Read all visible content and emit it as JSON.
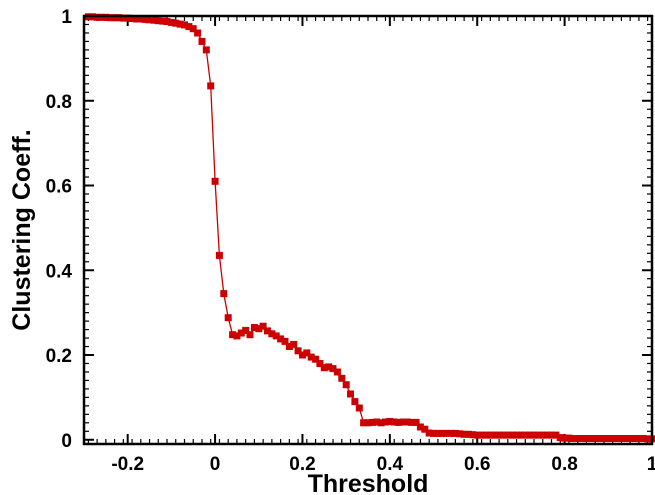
{
  "chart_data": {
    "type": "line",
    "title": "",
    "xlabel": "Threshold",
    "ylabel": "Clustering Coeff.",
    "xlim": [
      -0.3,
      1.0
    ],
    "ylim": [
      -0.01,
      1.0
    ],
    "xticks": [
      -0.2,
      0,
      0.2,
      0.4,
      0.6,
      0.8,
      1
    ],
    "xtick_labels": [
      "-0.2",
      "0",
      "0.2",
      "0.4",
      "0.6",
      "0.8",
      "1"
    ],
    "yticks": [
      0,
      0.2,
      0.4,
      0.6,
      0.8,
      1
    ],
    "ytick_labels": [
      "0",
      "0.2",
      "0.4",
      "0.6",
      "0.8",
      "1"
    ],
    "grid": false,
    "legend": "none",
    "marker": "square",
    "series": [
      {
        "color": "#cc0000",
        "x": [
          -0.29,
          -0.28,
          -0.27,
          -0.26,
          -0.25,
          -0.24,
          -0.23,
          -0.22,
          -0.21,
          -0.2,
          -0.19,
          -0.18,
          -0.17,
          -0.16,
          -0.15,
          -0.14,
          -0.13,
          -0.12,
          -0.11,
          -0.1,
          -0.09,
          -0.08,
          -0.07,
          -0.06,
          -0.05,
          -0.04,
          -0.03,
          -0.02,
          -0.01,
          0,
          0.01,
          0.02,
          0.03,
          0.04,
          0.05,
          0.06,
          0.07,
          0.08,
          0.09,
          0.1,
          0.11,
          0.12,
          0.13,
          0.14,
          0.15,
          0.16,
          0.17,
          0.18,
          0.19,
          0.2,
          0.21,
          0.22,
          0.23,
          0.24,
          0.25,
          0.26,
          0.27,
          0.28,
          0.29,
          0.3,
          0.31,
          0.32,
          0.33,
          0.34,
          0.35,
          0.36,
          0.37,
          0.38,
          0.39,
          0.4,
          0.41,
          0.42,
          0.43,
          0.44,
          0.45,
          0.46,
          0.47,
          0.48,
          0.49,
          0.5,
          0.51,
          0.52,
          0.53,
          0.54,
          0.55,
          0.56,
          0.57,
          0.58,
          0.59,
          0.6,
          0.61,
          0.62,
          0.63,
          0.64,
          0.65,
          0.66,
          0.67,
          0.68,
          0.69,
          0.7,
          0.71,
          0.72,
          0.73,
          0.74,
          0.75,
          0.76,
          0.77,
          0.78,
          0.79,
          0.8,
          0.81,
          0.82,
          0.83,
          0.84,
          0.85,
          0.86,
          0.87,
          0.88,
          0.89,
          0.9,
          0.91,
          0.92,
          0.93,
          0.94,
          0.95,
          0.96,
          0.97,
          0.98,
          0.99,
          1.0
        ],
        "y": [
          0.998,
          0.998,
          0.997,
          0.997,
          0.997,
          0.996,
          0.996,
          0.996,
          0.995,
          0.995,
          0.994,
          0.993,
          0.993,
          0.992,
          0.991,
          0.99,
          0.989,
          0.988,
          0.987,
          0.985,
          0.983,
          0.981,
          0.979,
          0.975,
          0.97,
          0.96,
          0.94,
          0.92,
          0.835,
          0.61,
          0.435,
          0.345,
          0.288,
          0.248,
          0.245,
          0.252,
          0.258,
          0.248,
          0.265,
          0.262,
          0.268,
          0.257,
          0.25,
          0.245,
          0.238,
          0.232,
          0.22,
          0.225,
          0.21,
          0.2,
          0.205,
          0.195,
          0.19,
          0.18,
          0.17,
          0.172,
          0.168,
          0.16,
          0.145,
          0.13,
          0.108,
          0.09,
          0.075,
          0.04,
          0.04,
          0.041,
          0.042,
          0.04,
          0.042,
          0.043,
          0.042,
          0.041,
          0.042,
          0.042,
          0.041,
          0.041,
          0.03,
          0.025,
          0.016,
          0.015,
          0.015,
          0.015,
          0.015,
          0.015,
          0.015,
          0.014,
          0.013,
          0.013,
          0.012,
          0.011,
          0.011,
          0.011,
          0.011,
          0.011,
          0.011,
          0.011,
          0.011,
          0.011,
          0.011,
          0.011,
          0.011,
          0.011,
          0.011,
          0.011,
          0.011,
          0.011,
          0.011,
          0.011,
          0.005,
          0.004,
          0.004,
          0.003,
          0.003,
          0.003,
          0.003,
          0.003,
          0.003,
          0.003,
          0.003,
          0.003,
          0.003,
          0.003,
          0.003,
          0.003,
          0.003,
          0.003,
          0.003,
          0.003,
          0.002,
          0.002
        ]
      }
    ]
  }
}
